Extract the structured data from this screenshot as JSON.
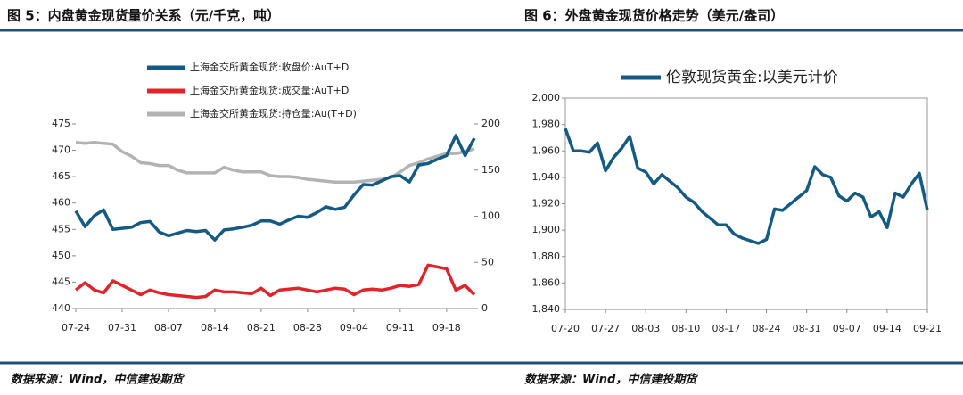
{
  "chart_data": [
    {
      "type": "line",
      "title": "图 5：内盘黄金现货量价关系（元/千克，吨）",
      "source": "数据来源：Wind，中信建投期货",
      "categories": [
        "07-24",
        null,
        null,
        null,
        null,
        "07-31",
        null,
        null,
        null,
        null,
        "08-07",
        null,
        null,
        null,
        null,
        "08-14",
        null,
        null,
        null,
        null,
        "08-21",
        null,
        null,
        null,
        null,
        "08-28",
        null,
        null,
        null,
        null,
        "09-04",
        null,
        null,
        null,
        null,
        "09-11",
        null,
        null,
        null,
        null,
        "09-18",
        null,
        null,
        null
      ],
      "ylim": [
        440,
        475
      ],
      "yticks": [
        440,
        445,
        450,
        455,
        460,
        465,
        470,
        475
      ],
      "y2lim": [
        0,
        200
      ],
      "y2ticks": [
        0,
        50,
        100,
        150,
        200
      ],
      "series": [
        {
          "name": "上海金交所黄金现货:收盘价:AuT+D",
          "color": "#155a83",
          "values": [
            458.5,
            455.5,
            457.6,
            458.7,
            455,
            455.2,
            455.4,
            456.3,
            456.5,
            454.5,
            453.8,
            454.3,
            454.8,
            454.6,
            454.8,
            453,
            454.9,
            455.1,
            455.4,
            455.8,
            456.6,
            456.6,
            456,
            456.8,
            457.5,
            457.3,
            458.2,
            459.3,
            458.8,
            459.2,
            461.5,
            463.5,
            463.4,
            464.2,
            465,
            465.2,
            464,
            467.2,
            467.5,
            468.3,
            469,
            472.8,
            469,
            472.3
          ]
        },
        {
          "name": "上海金交所黄金现货:成交量:AuT+D",
          "color": "#e0242b",
          "axis": "y2",
          "values": [
            20,
            28,
            20,
            17,
            30,
            25,
            20,
            15,
            20,
            17,
            15,
            14,
            13,
            12,
            13,
            20,
            18,
            18,
            17,
            16,
            22,
            14,
            20,
            21,
            22,
            20,
            18,
            20,
            22,
            21,
            15,
            20,
            21,
            20,
            22,
            25,
            24,
            26,
            47,
            45,
            43,
            20,
            25,
            15
          ]
        },
        {
          "name": "上海金交所黄金现货:持仓量:Au(T+D)",
          "color": "#b3b3b3",
          "axis": "y2",
          "values": [
            180,
            179,
            180,
            179,
            178,
            170,
            165,
            158,
            157,
            155,
            155,
            150,
            147,
            147,
            147,
            147,
            153,
            150,
            148,
            148,
            148,
            144,
            143,
            143,
            142,
            140,
            139,
            138,
            137,
            137,
            137,
            138,
            139,
            140,
            142,
            148,
            155,
            158,
            162,
            165,
            168,
            168,
            170,
            173
          ]
        }
      ]
    },
    {
      "type": "line",
      "title": "图 6：外盘黄金现货价格走势（美元/盎司）",
      "source": "数据来源：Wind，中信建投期货",
      "categories": [
        "07-20",
        null,
        null,
        null,
        null,
        "07-27",
        null,
        null,
        null,
        null,
        "08-03",
        null,
        null,
        null,
        null,
        "08-10",
        null,
        null,
        null,
        null,
        "08-17",
        null,
        null,
        null,
        null,
        "08-24",
        null,
        null,
        null,
        null,
        "08-31",
        null,
        null,
        null,
        null,
        "09-07",
        null,
        null,
        null,
        null,
        "09-14",
        null,
        null,
        null,
        null,
        "09-21"
      ],
      "ylim": [
        1840,
        2000
      ],
      "yticks": [
        {
          "value": 1840,
          "label": "1,840"
        },
        {
          "value": 1860,
          "label": "1,860"
        },
        {
          "value": 1880,
          "label": "1,880"
        },
        {
          "value": 1900,
          "label": "1,900"
        },
        {
          "value": 1920,
          "label": "1,920"
        },
        {
          "value": 1940,
          "label": "1,940"
        },
        {
          "value": 1960,
          "label": "1,960"
        },
        {
          "value": 1980,
          "label": "1,980"
        },
        {
          "value": 2000,
          "label": "2,000"
        }
      ],
      "series": [
        {
          "name": "伦敦现货黄金:以美元计价",
          "color": "#155a83",
          "values": [
            1977,
            1960,
            1960,
            1959,
            1966,
            1945,
            1955,
            1962,
            1971,
            1947,
            1944,
            1935,
            1942,
            1937,
            1932,
            1925,
            1921,
            1914,
            1909,
            1904,
            1904,
            1897,
            1894,
            1892,
            1890,
            1893,
            1916,
            1915,
            1920,
            1925,
            1930,
            1948,
            1942,
            1940,
            1926,
            1922,
            1928,
            1925,
            1910,
            1914,
            1902,
            1928,
            1925,
            1935,
            1943,
            1915
          ]
        }
      ]
    }
  ]
}
